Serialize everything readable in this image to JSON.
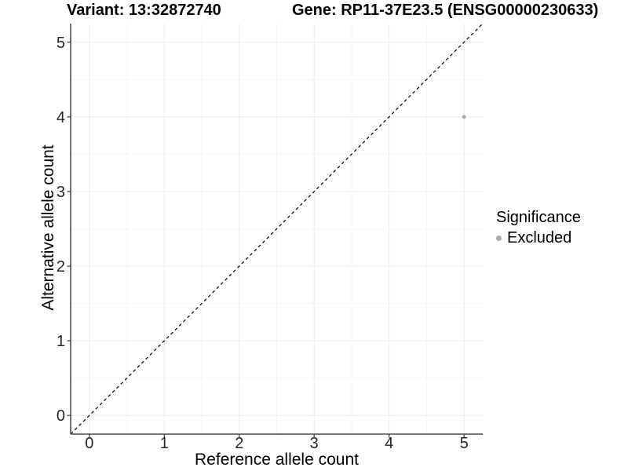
{
  "header": {
    "title_variant": "Variant: 13:32872740",
    "title_gene": "Gene: RP11-37E23.5 (ENSG00000230633)"
  },
  "legend": {
    "title": "Significance",
    "items": [
      {
        "label": "Excluded",
        "color": "#ababab"
      }
    ]
  },
  "chart_data": {
    "type": "scatter",
    "xlabel": "Reference allele count",
    "ylabel": "Alternative allele count",
    "xlim": [
      -0.25,
      5.25
    ],
    "ylim": [
      -0.25,
      5.25
    ],
    "x_ticks": [
      0,
      1,
      2,
      3,
      4,
      5
    ],
    "y_ticks": [
      0,
      1,
      2,
      3,
      4,
      5
    ],
    "minor_grid_step": 0.5,
    "grid": "on",
    "legend_position": "right",
    "points": [
      {
        "x": 5,
        "y": 4,
        "series": "Excluded",
        "color": "#ababab"
      }
    ],
    "reference_line": {
      "type": "identity",
      "style": "dashed",
      "color": "#000000"
    },
    "colors": {
      "background": "#ffffff",
      "grid_major": "#ececec",
      "grid_minor": "#f5f5f5",
      "axis_line": "#4d4d4d",
      "tick_label": "#262626",
      "point": "#ababab"
    }
  }
}
